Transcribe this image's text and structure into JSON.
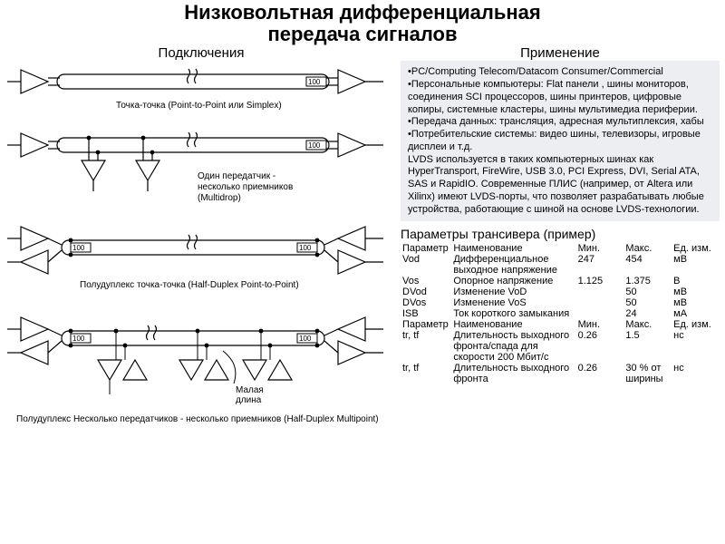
{
  "title_line1": "Низковольтная дифференциальная",
  "title_line2": "передача сигналов",
  "title_fontsize": 22,
  "left_heading": "Подключения",
  "right_heading": "Применение",
  "heading_fontsize": 15,
  "applications": {
    "bullets": [
      "PC/Computing Telecom/Datacom Consumer/Commercial",
      "Персональные компьютеры: Flat панели , шины мониторов, соединения SCI процессоров, шины принтеров, цифровые копиры, системные кластеры, шины мультимедиа периферии.",
      "Передача данных: трансляция, адресная мультиплексия, хабы",
      "Потребительские системы: видео шины, телевизоры, игровые дисплеи и т.д."
    ],
    "paragraph": "LVDS используется в таких компьютерных шинах как HyperTransport, FireWire, USB 3.0, PCI Express, DVI, Serial ATA, SAS и RapidIO. Современные ПЛИС (например, от Altera или Xilinx) имеют LVDS-порты, что позволяет разрабатывать любые устройства, работающие с шиной на основе LVDS-технологии.",
    "fontsize": 11,
    "bg_color": "#eceef2"
  },
  "params_heading": "Параметры трансивера (пример)",
  "params_heading_fontsize": 14,
  "params_table": {
    "fontsize": 11,
    "col_widths_pct": [
      16,
      39,
      15,
      15,
      15
    ],
    "header": [
      "Параметр",
      "Наименование",
      "Мин.",
      "Макс.",
      "Ед. изм."
    ],
    "rows1": [
      [
        "Vod",
        "Дифференциальное выходное напряжение",
        "247",
        "454",
        "мВ"
      ],
      [
        "Vos",
        "Опорное напряжение",
        "1.125",
        "1.375",
        "В"
      ],
      [
        "DVod",
        "Изменение VoD",
        "",
        "50",
        "мВ"
      ],
      [
        "DVos",
        "Изменение VoS",
        "",
        "50",
        "мВ"
      ],
      [
        "ISB",
        "Ток короткого замыкания",
        "",
        "24",
        "мА"
      ]
    ],
    "rows2": [
      [
        "tr, tf",
        "Длительность выходного фронта/спада для скорости 200 Мбит/с",
        "0.26",
        "1.5",
        "нс"
      ],
      [
        "tr, tf",
        "Длительность выходного фронта",
        "0.26",
        "30 % от ширины",
        "нс"
      ]
    ]
  },
  "diagrams": {
    "stroke": "#000000",
    "stroke_width": 1.2,
    "fill": "#ffffff",
    "term_label": "100",
    "term_fontsize": 8,
    "caption_fontsize": 10,
    "small_label": "Малая длина",
    "topologies": [
      {
        "caption": "Точка-точка (Point-to-Point или Simplex)"
      },
      {
        "caption": "Один передатчик - несколько приемников (Multidrop)"
      },
      {
        "caption": "Полудуплекс точка-точка (Half-Duplex Point-to-Point)"
      },
      {
        "caption": "Полудуплекс Несколько передатчиков - несколько приемников (Half-Duplex Multipoint)"
      }
    ]
  }
}
